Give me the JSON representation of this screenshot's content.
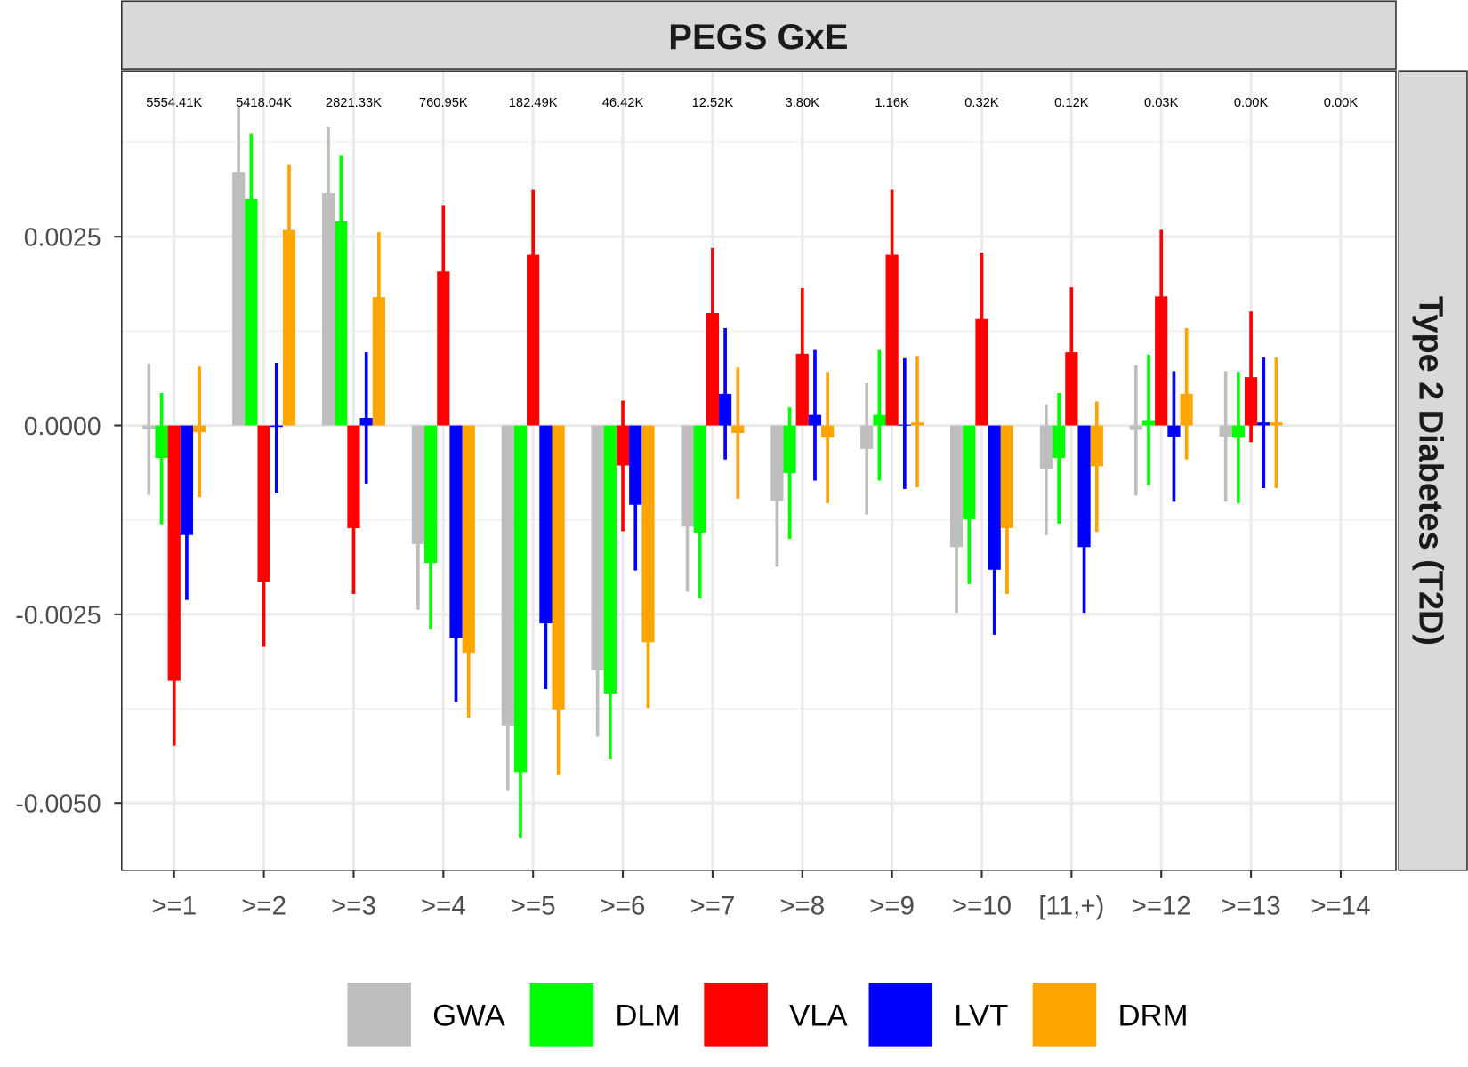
{
  "chart_data": {
    "type": "bar",
    "title": "PEGS GxE",
    "facet_row_label": "Type 2 Diabetes (T2D)",
    "xlabel": "",
    "ylabel": "",
    "ylim": [
      -0.00589,
      0.00469
    ],
    "yticks": [
      0.0025,
      0.0,
      -0.0025,
      -0.005
    ],
    "ytick_labels": [
      "0.0025",
      "0.0000",
      "-0.0025",
      "-0.0050"
    ],
    "grid": true,
    "legend_position": "bottom",
    "categories": [
      ">=1",
      ">=2",
      ">=3",
      ">=4",
      ">=5",
      ">=6",
      ">=7",
      ">=8",
      ">=9",
      ">=10",
      "[11,+)",
      ">=12",
      ">=13",
      ">=14"
    ],
    "count_labels": [
      "5554.41K",
      "5418.04K",
      "2821.33K",
      "760.95K",
      "182.49K",
      "46.42K",
      "12.52K",
      "3.80K",
      "1.16K",
      "0.32K",
      "0.12K",
      "0.03K",
      "0.00K",
      "0.00K"
    ],
    "series": [
      {
        "name": "GWA",
        "color": "#bebebe",
        "values": [
          -5e-05,
          0.00335,
          0.00308,
          -0.00157,
          -0.00397,
          -0.00324,
          -0.00134,
          -0.001,
          -0.00031,
          -0.00161,
          -0.00058,
          -6e-05,
          -0.00015,
          null
        ],
        "lower": [
          -0.00092,
          0.00248,
          0.00222,
          -0.00244,
          -0.00484,
          -0.00412,
          -0.0022,
          -0.00187,
          -0.00118,
          -0.00248,
          -0.00145,
          -0.00093,
          -0.00101,
          null
        ],
        "upper": [
          0.00082,
          0.00422,
          0.00395,
          -0.0007,
          -0.0031,
          -0.00238,
          -0.00047,
          -0.00013,
          0.00056,
          -0.00074,
          0.00028,
          0.0008,
          0.00072,
          null
        ]
      },
      {
        "name": "DLM",
        "color": "#00ff00",
        "values": [
          -0.00043,
          0.003,
          0.00271,
          -0.00182,
          -0.00459,
          -0.00355,
          -0.00142,
          -0.00063,
          0.00014,
          -0.00124,
          -0.00043,
          7e-05,
          -0.00016,
          null
        ],
        "lower": [
          -0.00131,
          0.00214,
          0.00185,
          -0.00269,
          -0.00546,
          -0.00442,
          -0.00229,
          -0.0015,
          -0.00073,
          -0.0021,
          -0.0013,
          -0.00079,
          -0.00103,
          null
        ],
        "upper": [
          0.00043,
          0.00386,
          0.00358,
          -0.00095,
          -0.00372,
          -0.00269,
          -0.00056,
          0.00024,
          0.001,
          -0.00037,
          0.00043,
          0.00094,
          0.00071,
          null
        ]
      },
      {
        "name": "VLA",
        "color": "#ff0000",
        "values": [
          -0.00338,
          -0.00207,
          -0.00136,
          0.00204,
          0.00226,
          -0.00053,
          0.00149,
          0.00095,
          0.00226,
          0.00141,
          0.00097,
          0.00171,
          0.00064,
          null
        ],
        "lower": [
          -0.00424,
          -0.00293,
          -0.00223,
          0.00118,
          0.0014,
          -0.0014,
          0.00062,
          9e-05,
          0.0014,
          0.00054,
          0.0001,
          0.00084,
          -0.00022,
          null
        ],
        "upper": [
          -0.00252,
          -0.0012,
          -0.0005,
          0.00291,
          0.00312,
          0.00033,
          0.00235,
          0.00182,
          0.00312,
          0.00229,
          0.00183,
          0.00259,
          0.00151,
          null
        ]
      },
      {
        "name": "LVT",
        "color": "#0000ff",
        "values": [
          -0.00145,
          -2e-05,
          0.0001,
          -0.00281,
          -0.00262,
          -0.00105,
          0.00042,
          0.00014,
          1e-05,
          -0.00191,
          -0.00161,
          -0.00015,
          4e-05,
          null
        ],
        "lower": [
          -0.00231,
          -0.0009,
          -0.00077,
          -0.00366,
          -0.00349,
          -0.00192,
          -0.00045,
          -0.00073,
          -0.00084,
          -0.00277,
          -0.00248,
          -0.00101,
          -0.00083,
          null
        ],
        "upper": [
          -0.0006,
          0.00083,
          0.00097,
          -0.00194,
          -0.00176,
          -0.00019,
          0.00129,
          0.001,
          0.00089,
          -0.00104,
          -0.00074,
          0.00072,
          0.0009,
          null
        ]
      },
      {
        "name": "DRM",
        "color": "#ffa500",
        "values": [
          -9e-05,
          0.00259,
          0.0017,
          -0.00301,
          -0.00376,
          -0.00287,
          -0.0001,
          -0.00016,
          4e-05,
          -0.00136,
          -0.00054,
          0.00042,
          4e-05,
          null
        ],
        "lower": [
          -0.00095,
          0.00172,
          0.00083,
          -0.00387,
          -0.00463,
          -0.00374,
          -0.00097,
          -0.00103,
          -0.00082,
          -0.00223,
          -0.00141,
          -0.00045,
          -0.00083,
          null
        ],
        "upper": [
          0.00078,
          0.00345,
          0.00256,
          -0.00214,
          -0.0029,
          -0.002,
          0.00077,
          0.00071,
          0.00092,
          -0.0005,
          0.00032,
          0.00129,
          0.0009,
          null
        ]
      }
    ]
  }
}
